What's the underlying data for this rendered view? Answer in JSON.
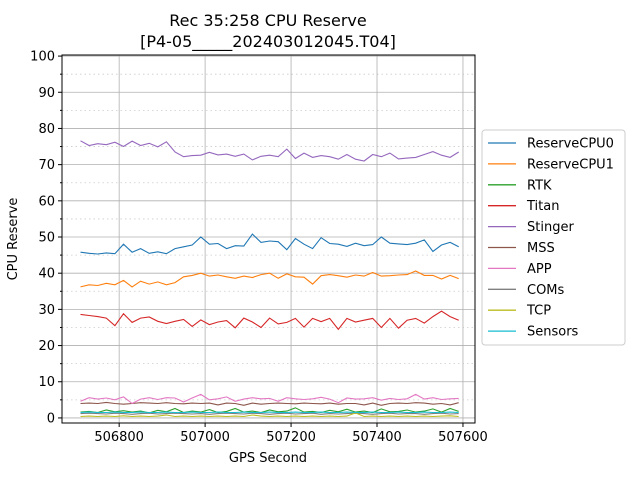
{
  "chart_data": {
    "type": "line",
    "title": [
      "Rec 35:258 CPU Reserve",
      "[P4-05_____202403012045.T04]"
    ],
    "xlabel": "GPS Second",
    "ylabel": "CPU Reserve",
    "xlim": [
      506667,
      507628
    ],
    "ylim": [
      -1.4,
      100.3
    ],
    "xticks": [
      506800,
      507000,
      507200,
      507400,
      507600
    ],
    "xtick_labels": [
      "506800",
      "507000",
      "507200",
      "507400",
      "507600"
    ],
    "yticks": [
      0,
      10,
      20,
      30,
      40,
      50,
      60,
      70,
      80,
      90,
      100
    ],
    "ytick_labels": [
      "0",
      "10",
      "20",
      "30",
      "40",
      "50",
      "60",
      "70",
      "80",
      "90",
      "100"
    ],
    "grid": true,
    "legend_position": "right",
    "x_start": 506710,
    "x_step": 20,
    "series": [
      {
        "name": "ReserveCPU0",
        "color": "#1f77b4",
        "values": [
          45.8,
          45.5,
          45.3,
          45.6,
          45.4,
          48.0,
          45.8,
          46.8,
          45.5,
          45.9,
          45.4,
          46.8,
          47.3,
          47.8,
          50.0,
          48.0,
          48.2,
          46.8,
          47.6,
          47.5,
          50.8,
          48.5,
          48.9,
          48.7,
          46.5,
          49.6,
          48.0,
          46.8,
          49.8,
          48.2,
          48.0,
          47.4,
          48.3,
          47.6,
          47.9,
          50.0,
          48.3,
          48.1,
          47.9,
          48.3,
          49.2,
          46.0,
          47.8,
          48.5,
          47.3
        ]
      },
      {
        "name": "ReserveCPU1",
        "color": "#ff7f0e",
        "values": [
          36.2,
          36.8,
          36.6,
          37.2,
          36.8,
          38.0,
          36.2,
          37.8,
          37.0,
          37.6,
          36.8,
          37.4,
          39.0,
          39.4,
          40.0,
          39.2,
          39.5,
          39.0,
          38.6,
          39.2,
          38.8,
          39.6,
          40.0,
          38.6,
          39.8,
          39.0,
          38.9,
          37.0,
          39.3,
          39.6,
          39.3,
          38.9,
          39.5,
          39.2,
          40.2,
          39.2,
          39.3,
          39.5,
          39.6,
          40.6,
          39.4,
          39.4,
          38.4,
          39.4,
          38.5
        ]
      },
      {
        "name": "RTK",
        "color": "#2ca02c",
        "values": [
          1.6,
          1.8,
          1.5,
          2.2,
          1.7,
          2.0,
          1.6,
          1.9,
          1.4,
          2.1,
          1.7,
          2.6,
          1.5,
          1.9,
          1.6,
          2.3,
          1.5,
          1.8,
          2.6,
          1.6,
          1.9,
          1.5,
          2.2,
          1.7,
          1.9,
          2.8,
          1.6,
          1.8,
          1.5,
          2.1,
          1.7,
          2.4,
          1.6,
          1.9,
          1.5,
          2.5,
          1.7,
          1.8,
          2.2,
          1.6,
          1.9,
          2.5,
          1.6,
          2.6,
          1.8
        ]
      },
      {
        "name": "Titan",
        "color": "#d62728",
        "values": [
          28.6,
          28.3,
          28.0,
          27.6,
          25.5,
          28.8,
          26.4,
          27.6,
          27.9,
          26.7,
          26.1,
          26.7,
          27.2,
          25.3,
          27.1,
          25.8,
          26.5,
          26.9,
          24.9,
          27.6,
          26.5,
          25.0,
          27.6,
          26.0,
          26.4,
          27.5,
          25.1,
          27.5,
          26.6,
          27.5,
          24.5,
          27.5,
          26.5,
          27.0,
          27.5,
          25.0,
          27.5,
          24.8,
          27.0,
          27.5,
          26.2,
          28.0,
          29.5,
          28.0,
          27.0
        ]
      },
      {
        "name": "Stinger",
        "color": "#9467bd",
        "values": [
          76.6,
          75.3,
          75.8,
          75.5,
          76.2,
          75.0,
          76.5,
          75.3,
          75.9,
          74.9,
          76.3,
          73.5,
          72.2,
          72.5,
          72.6,
          73.4,
          72.7,
          72.9,
          72.3,
          72.9,
          71.3,
          72.3,
          72.6,
          72.2,
          74.3,
          71.7,
          73.2,
          72.0,
          72.5,
          72.2,
          71.5,
          72.8,
          71.5,
          71.0,
          72.8,
          72.2,
          73.2,
          71.6,
          71.8,
          72.0,
          72.8,
          73.6,
          72.6,
          72.0,
          73.5
        ]
      },
      {
        "name": "MSS",
        "color": "#8c564b",
        "values": [
          4.0,
          4.1,
          4.0,
          4.3,
          4.0,
          3.8,
          4.0,
          4.2,
          4.1,
          4.0,
          4.2,
          4.0,
          3.9,
          4.1,
          4.0,
          4.1,
          3.6,
          4.1,
          4.0,
          3.5,
          4.1,
          3.8,
          4.0,
          4.1,
          4.0,
          3.9,
          4.1,
          4.0,
          3.9,
          4.1,
          3.8,
          4.0,
          4.0,
          3.6,
          4.1,
          3.5,
          4.0,
          4.1,
          4.0,
          4.2,
          4.1,
          3.8,
          4.0,
          3.6,
          4.2
        ]
      },
      {
        "name": "APP",
        "color": "#e377c2",
        "values": [
          4.6,
          5.6,
          5.2,
          5.5,
          5.0,
          5.8,
          4.0,
          5.2,
          5.6,
          5.1,
          5.6,
          5.5,
          4.4,
          5.5,
          6.5,
          5.0,
          5.3,
          5.8,
          4.6,
          5.2,
          5.6,
          5.3,
          5.4,
          4.6,
          5.6,
          5.3,
          5.1,
          5.3,
          5.7,
          5.2,
          4.2,
          5.5,
          5.2,
          5.3,
          5.6,
          4.9,
          5.4,
          5.1,
          5.3,
          6.5,
          5.2,
          5.6,
          5.1,
          5.3,
          5.4
        ]
      },
      {
        "name": "COMs",
        "color": "#7f7f7f",
        "values": [
          1.2,
          1.3,
          1.2,
          1.1,
          1.3,
          1.2,
          1.0,
          1.2,
          1.3,
          1.1,
          1.2,
          1.3,
          1.2,
          1.1,
          1.2,
          1.0,
          1.2,
          1.3,
          1.2,
          1.1,
          1.3,
          1.2,
          1.0,
          1.2,
          1.3,
          1.1,
          1.2,
          1.3,
          1.0,
          1.2,
          1.1,
          1.2,
          1.3,
          1.2,
          1.0,
          1.2,
          1.3,
          1.1,
          1.2,
          1.2,
          1.0,
          1.2,
          1.3,
          1.1,
          1.2
        ]
      },
      {
        "name": "TCP",
        "color": "#bcbd22",
        "values": [
          0.4,
          0.5,
          0.4,
          0.5,
          0.4,
          0.6,
          0.4,
          0.5,
          0.4,
          0.5,
          0.8,
          0.4,
          0.5,
          0.4,
          0.5,
          0.4,
          0.5,
          0.4,
          0.5,
          0.4,
          0.8,
          0.5,
          0.4,
          0.5,
          0.4,
          0.5,
          0.4,
          0.5,
          0.4,
          0.5,
          0.4,
          0.5,
          1.4,
          0.4,
          0.5,
          0.4,
          0.5,
          0.4,
          0.5,
          0.4,
          0.5,
          0.4,
          0.5,
          0.6,
          0.4
        ]
      },
      {
        "name": "Sensors",
        "color": "#17becf",
        "values": [
          1.5,
          1.6,
          1.5,
          1.5,
          1.6,
          1.5,
          1.5,
          1.6,
          1.5,
          1.5,
          1.6,
          1.5,
          1.5,
          1.6,
          1.5,
          1.5,
          1.6,
          1.5,
          1.5,
          1.6,
          1.5,
          1.5,
          1.6,
          1.5,
          1.5,
          1.6,
          1.5,
          1.5,
          1.6,
          1.5,
          1.5,
          1.6,
          1.5,
          1.5,
          1.6,
          1.5,
          1.5,
          1.6,
          1.5,
          1.5,
          1.6,
          1.5,
          1.5,
          1.6,
          1.5
        ]
      }
    ]
  }
}
